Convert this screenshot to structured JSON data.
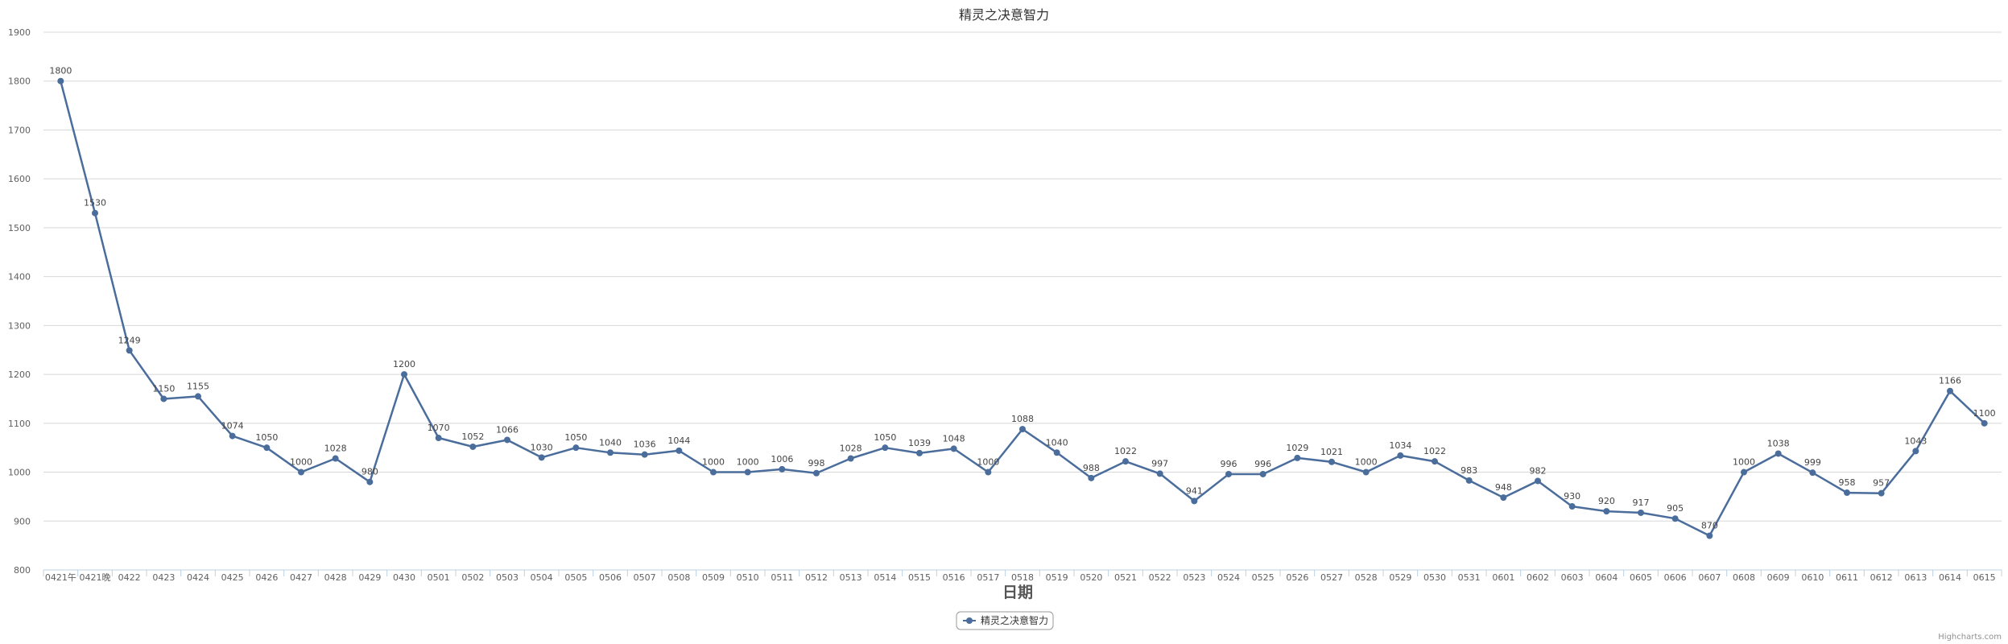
{
  "chart_data": {
    "type": "line",
    "title": "精灵之决意智力",
    "xlabel": "日期",
    "ylabel": "",
    "ylim": [
      800,
      1900
    ],
    "yticks": [
      800,
      900,
      1000,
      1100,
      1200,
      1300,
      1400,
      1500,
      1600,
      1700,
      1800,
      1900
    ],
    "grid": true,
    "legend_position": "bottom-center",
    "categories": [
      "0421午",
      "0421晚",
      "0422",
      "0423",
      "0424",
      "0425",
      "0426",
      "0427",
      "0428",
      "0429",
      "0430",
      "0501",
      "0502",
      "0503",
      "0504",
      "0505",
      "0506",
      "0507",
      "0508",
      "0509",
      "0510",
      "0511",
      "0512",
      "0513",
      "0514",
      "0515",
      "0516",
      "0517",
      "0518",
      "0519",
      "0520",
      "0521",
      "0522",
      "0523",
      "0524",
      "0525",
      "0526",
      "0527",
      "0528",
      "0529",
      "0530",
      "0531",
      "0601",
      "0602",
      "0603",
      "0604",
      "0605",
      "0606",
      "0607",
      "0608",
      "0609",
      "0610",
      "0611",
      "0612",
      "0613",
      "0614",
      "0615"
    ],
    "series": [
      {
        "name": "精灵之决意智力",
        "color": "#4a6d9c",
        "values": [
          1800,
          1530,
          1249,
          1150,
          1155,
          1074,
          1050,
          1000,
          1028,
          980,
          1200,
          1070,
          1052,
          1066,
          1030,
          1050,
          1040,
          1036,
          1044,
          1000,
          1000,
          1006,
          998,
          1028,
          1050,
          1039,
          1048,
          1000,
          1088,
          1040,
          988,
          1022,
          997,
          941,
          996,
          996,
          1029,
          1021,
          1000,
          1034,
          1022,
          983,
          948,
          982,
          930,
          920,
          917,
          905,
          870,
          1000,
          1038,
          999,
          958,
          957,
          1043,
          1166,
          1100
        ]
      }
    ]
  },
  "credits": "Highcharts.com",
  "colors": {
    "grid": "#d8d8d8",
    "axis": "#c0d0e0",
    "series": "#4a6d9c"
  }
}
